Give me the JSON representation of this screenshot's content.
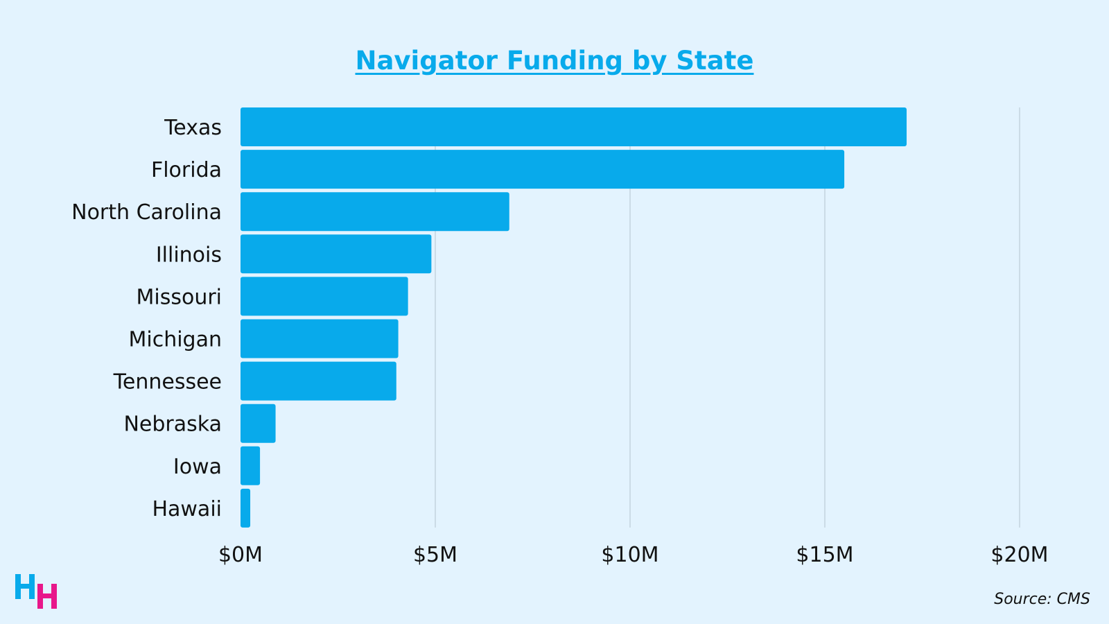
{
  "chart_data": {
    "type": "bar",
    "orientation": "horizontal",
    "title": "Navigator Funding by State",
    "categories": [
      "Texas",
      "Florida",
      "North Carolina",
      "Illinois",
      "Missouri",
      "Michigan",
      "Tennessee",
      "Nebraska",
      "Iowa",
      "Hawaii"
    ],
    "values": [
      17.1,
      15.5,
      6.9,
      4.9,
      4.3,
      4.05,
      4.0,
      0.9,
      0.5,
      0.25
    ],
    "unit": "$M",
    "xlim": [
      0,
      20
    ],
    "xticks": [
      0,
      5,
      10,
      15,
      20
    ],
    "xtick_labels": [
      "$0M",
      "$5M",
      "$10M",
      "$15M",
      "$20M"
    ],
    "xlabel": "",
    "ylabel": "",
    "grid": "vertical",
    "legend": "none",
    "bar_color": "#08aaeb"
  },
  "source": "Source: CMS",
  "logo": {
    "text": "HH",
    "colors": [
      "#08aaeb",
      "#e8178a"
    ]
  }
}
